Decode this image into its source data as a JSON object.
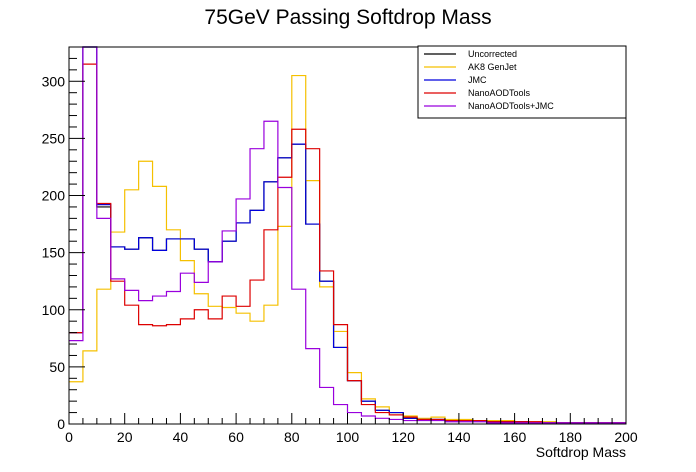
{
  "chart_data": {
    "type": "line",
    "title": "75GeV Passing Softdrop Mass",
    "xlabel": "Softdrop Mass",
    "ylabel": "",
    "xlim": [
      0,
      200
    ],
    "ylim": [
      0,
      330
    ],
    "bin_width": 5,
    "x_ticks": [
      0,
      20,
      40,
      60,
      80,
      100,
      120,
      140,
      160,
      180,
      200
    ],
    "y_ticks": [
      0,
      50,
      100,
      150,
      200,
      250,
      300
    ],
    "grid": false,
    "legend_position": "top-right",
    "series": [
      {
        "name": "Uncorrected",
        "color": "#000000",
        "values": [
          80,
          330,
          190,
          155,
          153,
          163,
          152,
          162,
          162,
          153,
          142,
          160,
          176,
          187,
          212,
          233,
          245,
          175,
          125,
          67,
          38,
          20,
          12,
          10,
          5,
          4,
          4,
          3,
          3,
          3,
          2,
          2,
          2,
          1,
          1,
          1,
          1,
          1,
          1,
          1
        ]
      },
      {
        "name": "AK8 GenJet",
        "color": "#f5c000",
        "values": [
          37,
          64,
          118,
          168,
          205,
          230,
          208,
          170,
          143,
          114,
          103,
          102,
          97,
          90,
          104,
          173,
          305,
          213,
          120,
          81,
          45,
          22,
          15,
          10,
          7,
          5,
          6,
          4,
          4,
          3,
          3,
          3,
          2,
          2,
          2,
          1,
          1,
          1,
          1,
          1
        ]
      },
      {
        "name": "JMC",
        "color": "#0000dd",
        "values": [
          80,
          330,
          192,
          155,
          153,
          163,
          152,
          162,
          162,
          153,
          142,
          160,
          176,
          187,
          212,
          233,
          245,
          175,
          125,
          67,
          38,
          20,
          12,
          10,
          5,
          4,
          4,
          3,
          3,
          3,
          2,
          2,
          2,
          1,
          1,
          1,
          1,
          1,
          1,
          1
        ]
      },
      {
        "name": "NanoAODTools",
        "color": "#dd0000",
        "values": [
          80,
          315,
          193,
          125,
          104,
          87,
          86,
          87,
          92,
          100,
          92,
          112,
          103,
          126,
          170,
          216,
          258,
          241,
          134,
          87,
          38,
          17,
          10,
          8,
          6,
          4,
          4,
          3,
          3,
          3,
          2,
          2,
          2,
          2,
          1,
          1,
          1,
          1,
          1,
          1
        ]
      },
      {
        "name": "NanoAODTools+JMC",
        "color": "#9900dd",
        "values": [
          73,
          330,
          180,
          127,
          117,
          108,
          112,
          116,
          132,
          124,
          142,
          169,
          197,
          241,
          265,
          207,
          118,
          66,
          32,
          17,
          10,
          7,
          5,
          4,
          3,
          3,
          3,
          2,
          2,
          2,
          1,
          1,
          1,
          1,
          1,
          1,
          1,
          1,
          1,
          1
        ]
      }
    ]
  }
}
